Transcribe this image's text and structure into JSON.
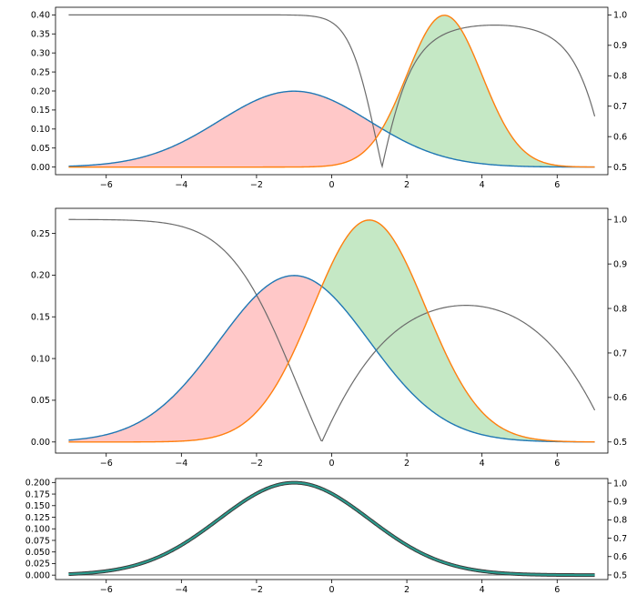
{
  "figure": {
    "background": "#ffffff"
  },
  "colors": {
    "blue": "#1f77b4",
    "orange": "#ff7f0e",
    "gray": "#6b6b6b",
    "red_fill": "#ffc8c8",
    "green_fill": "#c5e8c5"
  },
  "chart_data": [
    {
      "type": "line",
      "title": "",
      "xlabel": "",
      "ylabel": "",
      "xlim": [
        -7.35,
        7.35
      ],
      "ylim": [
        -0.02,
        0.42
      ],
      "y2lim": [
        0.475,
        1.025
      ],
      "xticks": [
        -6,
        -4,
        -2,
        0,
        2,
        4,
        6
      ],
      "yticks": [
        0.0,
        0.05,
        0.1,
        0.15,
        0.2,
        0.25,
        0.3,
        0.35,
        0.4
      ],
      "ytick_labels": [
        "0.00",
        "0.05",
        "0.10",
        "0.15",
        "0.20",
        "0.25",
        "0.30",
        "0.35",
        "0.40"
      ],
      "y2ticks": [
        0.5,
        0.6,
        0.7,
        0.8,
        0.9,
        1.0
      ],
      "y2tick_labels": [
        "0.5",
        "0.6",
        "0.7",
        "0.8",
        "0.9",
        "1.0"
      ],
      "x_range": [
        -7,
        7
      ],
      "series": [
        {
          "distribution": "normal",
          "mean": -1,
          "std": 2,
          "color": "blue"
        },
        {
          "distribution": "normal",
          "mean": 3,
          "std": 1,
          "color": "orange"
        }
      ],
      "secondary_series": {
        "description": "posterior max probability",
        "color": "gray",
        "axis": "right"
      },
      "fills": [
        {
          "where": "blue greater than orange",
          "color": "red_fill"
        },
        {
          "where": "orange greater than blue",
          "color": "green_fill"
        }
      ],
      "grid": false
    },
    {
      "type": "line",
      "title": "",
      "xlabel": "",
      "ylabel": "",
      "xlim": [
        -7.35,
        7.35
      ],
      "ylim": [
        -0.0133,
        0.28
      ],
      "y2lim": [
        0.475,
        1.025
      ],
      "xticks": [
        -6,
        -4,
        -2,
        0,
        2,
        4,
        6
      ],
      "yticks": [
        0.0,
        0.05,
        0.1,
        0.15,
        0.2,
        0.25
      ],
      "ytick_labels": [
        "0.00",
        "0.05",
        "0.10",
        "0.15",
        "0.20",
        "0.25"
      ],
      "y2ticks": [
        0.5,
        0.6,
        0.7,
        0.8,
        0.9,
        1.0
      ],
      "y2tick_labels": [
        "0.5",
        "0.6",
        "0.7",
        "0.8",
        "0.9",
        "1.0"
      ],
      "x_range": [
        -7,
        7
      ],
      "series": [
        {
          "distribution": "normal",
          "mean": -1,
          "std": 2,
          "color": "blue"
        },
        {
          "distribution": "normal",
          "mean": 1,
          "std": 1.5,
          "color": "orange"
        }
      ],
      "secondary_series": {
        "description": "posterior max probability",
        "color": "gray",
        "axis": "right"
      },
      "fills": [
        {
          "where": "blue greater than orange",
          "color": "red_fill"
        },
        {
          "where": "orange greater than blue",
          "color": "green_fill"
        }
      ],
      "grid": false
    },
    {
      "type": "line",
      "title": "",
      "xlabel": "",
      "ylabel": "",
      "xlim": [
        -7.35,
        7.35
      ],
      "ylim": [
        -0.0095,
        0.2085
      ],
      "y2lim": [
        0.475,
        1.025
      ],
      "xticks": [
        -6,
        -4,
        -2,
        0,
        2,
        4,
        6
      ],
      "yticks": [
        0.0,
        0.025,
        0.05,
        0.075,
        0.1,
        0.125,
        0.15,
        0.175,
        0.2
      ],
      "ytick_labels": [
        "0.000",
        "0.025",
        "0.050",
        "0.075",
        "0.100",
        "0.125",
        "0.150",
        "0.175",
        "0.200"
      ],
      "y2ticks": [
        0.5,
        0.6,
        0.7,
        0.8,
        0.9,
        1.0
      ],
      "y2tick_labels": [
        "0.5",
        "0.6",
        "0.7",
        "0.8",
        "0.9",
        "1.0"
      ],
      "x_range": [
        -7,
        7
      ],
      "series": [
        {
          "distribution": "normal",
          "mean": -1,
          "std": 2,
          "color": "blue"
        },
        {
          "distribution": "normal",
          "mean": -1,
          "std": 2,
          "color": "orange"
        }
      ],
      "secondary_series": {
        "description": "posterior max probability",
        "color": "gray",
        "axis": "right"
      },
      "fills": [],
      "grid": false
    }
  ]
}
